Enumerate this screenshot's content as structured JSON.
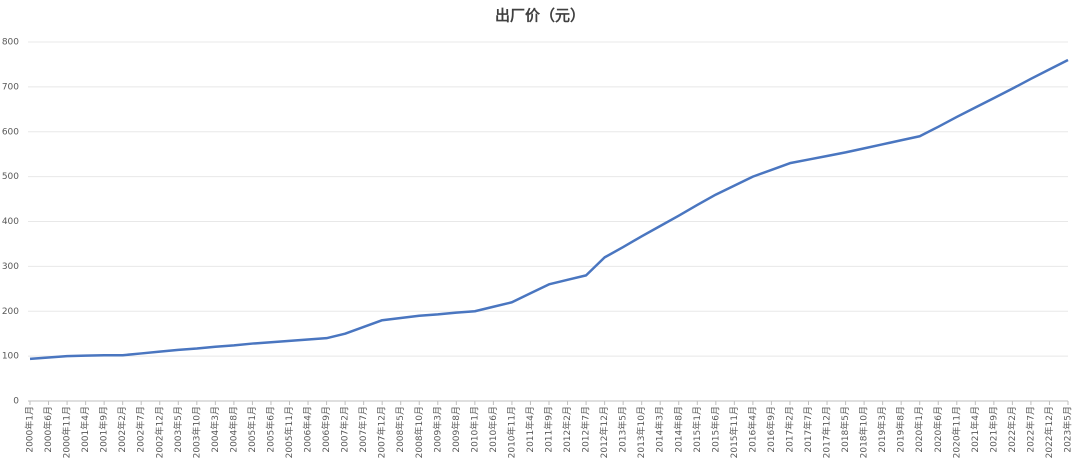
{
  "chart_data": {
    "type": "line",
    "title": "出厂价（元）",
    "categories": [
      "2000年1月",
      "2000年6月",
      "2000年11月",
      "2001年4月",
      "2001年9月",
      "2002年2月",
      "2002年7月",
      "2002年12月",
      "2003年5月",
      "2003年10月",
      "2004年3月",
      "2004年8月",
      "2005年1月",
      "2005年6月",
      "2005年11月",
      "2006年4月",
      "2006年9月",
      "2007年2月",
      "2007年7月",
      "2007年12月",
      "2008年5月",
      "2008年10月",
      "2009年3月",
      "2009年8月",
      "2010年1月",
      "2010年6月",
      "2010年11月",
      "2011年4月",
      "2011年9月",
      "2012年2月",
      "2012年7月",
      "2012年12月",
      "2013年5月",
      "2013年10月",
      "2014年3月",
      "2014年8月",
      "2015年1月",
      "2015年6月",
      "2015年11月",
      "2016年4月",
      "2016年9月",
      "2017年2月",
      "2017年7月",
      "2017年12月",
      "2018年5月",
      "2018年10月",
      "2019年3月",
      "2019年8月",
      "2020年1月",
      "2020年6月",
      "2020年11月",
      "2021年4月",
      "2021年9月",
      "2022年2月",
      "2022年7月",
      "2022年12月",
      "2023年5月"
    ],
    "series": [
      {
        "name": "出厂价（元）",
        "color": "#4a76c0",
        "values": [
          94,
          97,
          100,
          101,
          102,
          102,
          106,
          110,
          114,
          117,
          121,
          124,
          128,
          131,
          134,
          137,
          140,
          150,
          165,
          180,
          185,
          190,
          193,
          197,
          200,
          210,
          220,
          240,
          260,
          270,
          280,
          320,
          343,
          367,
          390,
          413,
          437,
          460,
          480,
          500,
          515,
          530,
          538,
          546,
          554,
          563,
          572,
          581,
          590,
          611,
          633,
          654,
          675,
          696,
          718,
          739,
          760
        ]
      }
    ],
    "ylim": [
      0,
      800
    ],
    "yticks": [
      0,
      100,
      200,
      300,
      400,
      500,
      600,
      700,
      800
    ],
    "grid": true
  }
}
